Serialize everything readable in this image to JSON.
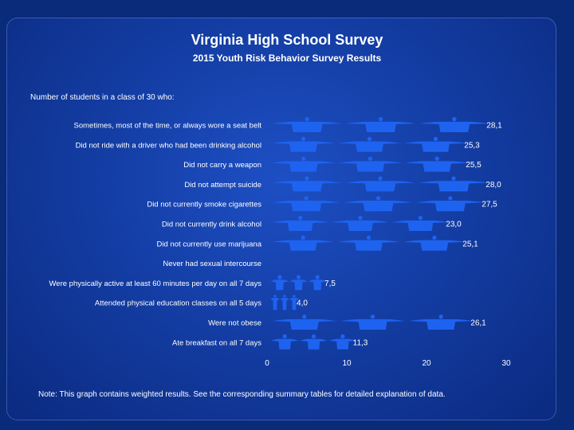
{
  "slide": {
    "title": "Virginia High School Survey",
    "subtitle": "2015 Youth Risk Behavior Survey Results",
    "intro": "Number of students in a class of 30 who:",
    "note": "Note: This graph contains weighted results. See the corresponding summary tables for detailed explanation of data."
  },
  "colors": {
    "background": "#0a2a7a",
    "panel": "#123a9e",
    "figure": "#1e63f0",
    "text": "#ffffff"
  },
  "chart_data": {
    "type": "bar",
    "orientation": "horizontal",
    "mark": "pictograph-people",
    "categories": [
      "Sometimes, most of the time, or always wore a seat belt",
      "Did not ride with a driver who had been drinking alcohol",
      "Did not carry a weapon",
      "Did not attempt suicide",
      "Did not currently smoke cigarettes",
      "Did not currently drink alcohol",
      "Did not currently use marijuana",
      "Never had sexual intercourse",
      "Were physically active at least 60 minutes per day on all 7 days",
      "Attended physical education classes on all 5 days",
      "Were not obese",
      "Ate breakfast on all 7 days"
    ],
    "values": [
      28.1,
      25.3,
      25.5,
      28.0,
      27.5,
      23.0,
      25.1,
      null,
      7.5,
      4.0,
      26.1,
      11.3
    ],
    "value_labels": [
      "28,1",
      "25,3",
      "25,5",
      "28,0",
      "27,5",
      "23,0",
      "25,1",
      "",
      "7,5",
      "4,0",
      "26,1",
      "11,3"
    ],
    "xlim": [
      0,
      30
    ],
    "xticks": [
      "0",
      "10",
      "20",
      "30"
    ],
    "grid": false,
    "legend": "none"
  }
}
